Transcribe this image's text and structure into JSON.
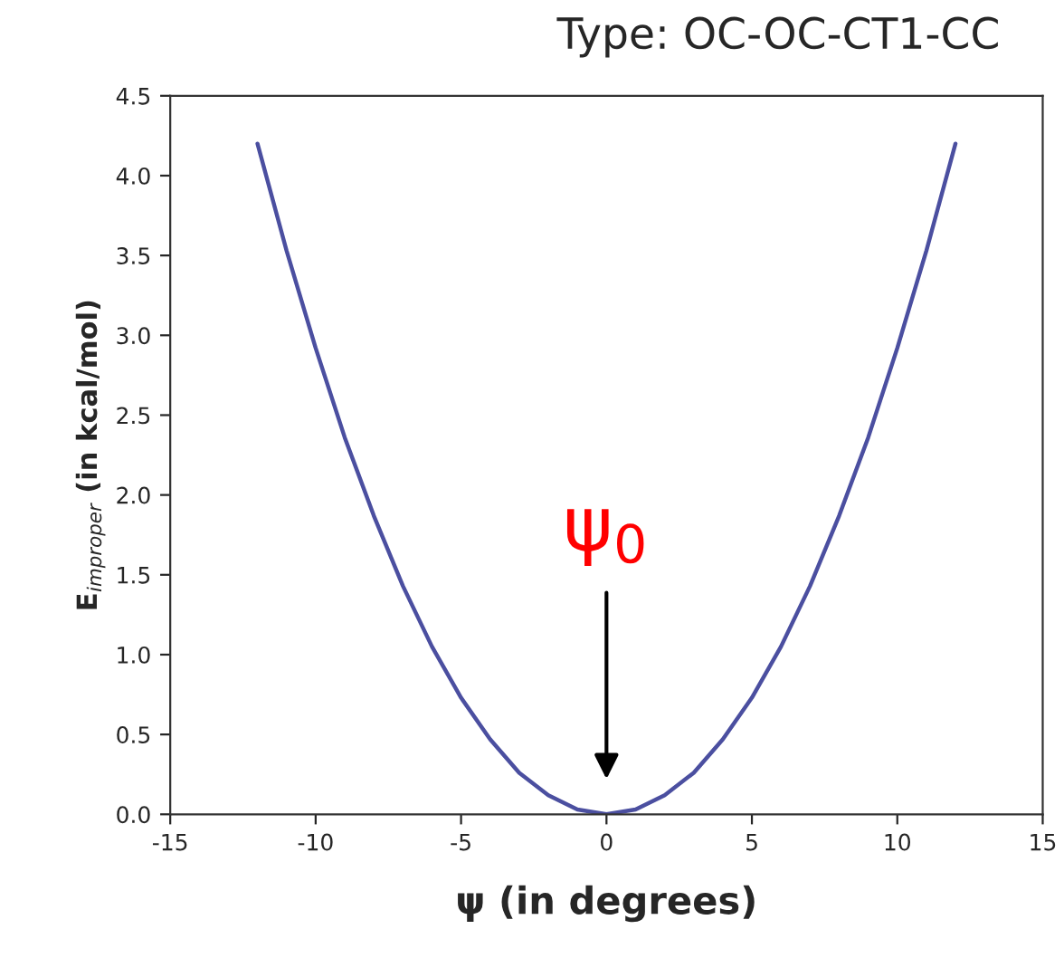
{
  "chart_data": {
    "type": "line",
    "title": "Type: OC-OC-CT1-CC",
    "xlabel": "ψ (in degrees)",
    "ylabel": "E$_{improper}$ (in kcal/mol)",
    "x": [
      -12,
      -11,
      -10,
      -9,
      -8,
      -7,
      -6,
      -5,
      -4,
      -3,
      -2,
      -1,
      0,
      1,
      2,
      3,
      4,
      5,
      6,
      7,
      8,
      9,
      10,
      11,
      12
    ],
    "series": [
      {
        "color": "#4b4fa0",
        "values": [
          4.2,
          3.53,
          2.92,
          2.36,
          1.87,
          1.43,
          1.05,
          0.73,
          0.47,
          0.26,
          0.12,
          0.03,
          0,
          0.03,
          0.12,
          0.26,
          0.47,
          0.73,
          1.05,
          1.43,
          1.87,
          2.36,
          2.92,
          3.53,
          4.2
        ]
      }
    ],
    "xlim": [
      -15,
      15
    ],
    "xticks": [
      -15,
      -10,
      -5,
      0,
      5,
      10,
      15
    ],
    "ylim": [
      0,
      4.5
    ],
    "yticks": [
      {
        "value": 0,
        "label": "0.0"
      },
      {
        "value": 0.5,
        "label": "0.5"
      },
      {
        "value": 1,
        "label": "1.0"
      },
      {
        "value": 1.5,
        "label": "1.5"
      },
      {
        "value": 2,
        "label": "2.0"
      },
      {
        "value": 2.5,
        "label": "2.5"
      },
      {
        "value": 3,
        "label": "3.0"
      },
      {
        "value": 3.5,
        "label": "3.5"
      },
      {
        "value": 4,
        "label": "4.0"
      },
      {
        "value": 4.5,
        "label": "4.5"
      }
    ],
    "annotations": [
      "ψ$_{0}$"
    ],
    "grid": false,
    "marker": "none",
    "line_style": "solid"
  }
}
